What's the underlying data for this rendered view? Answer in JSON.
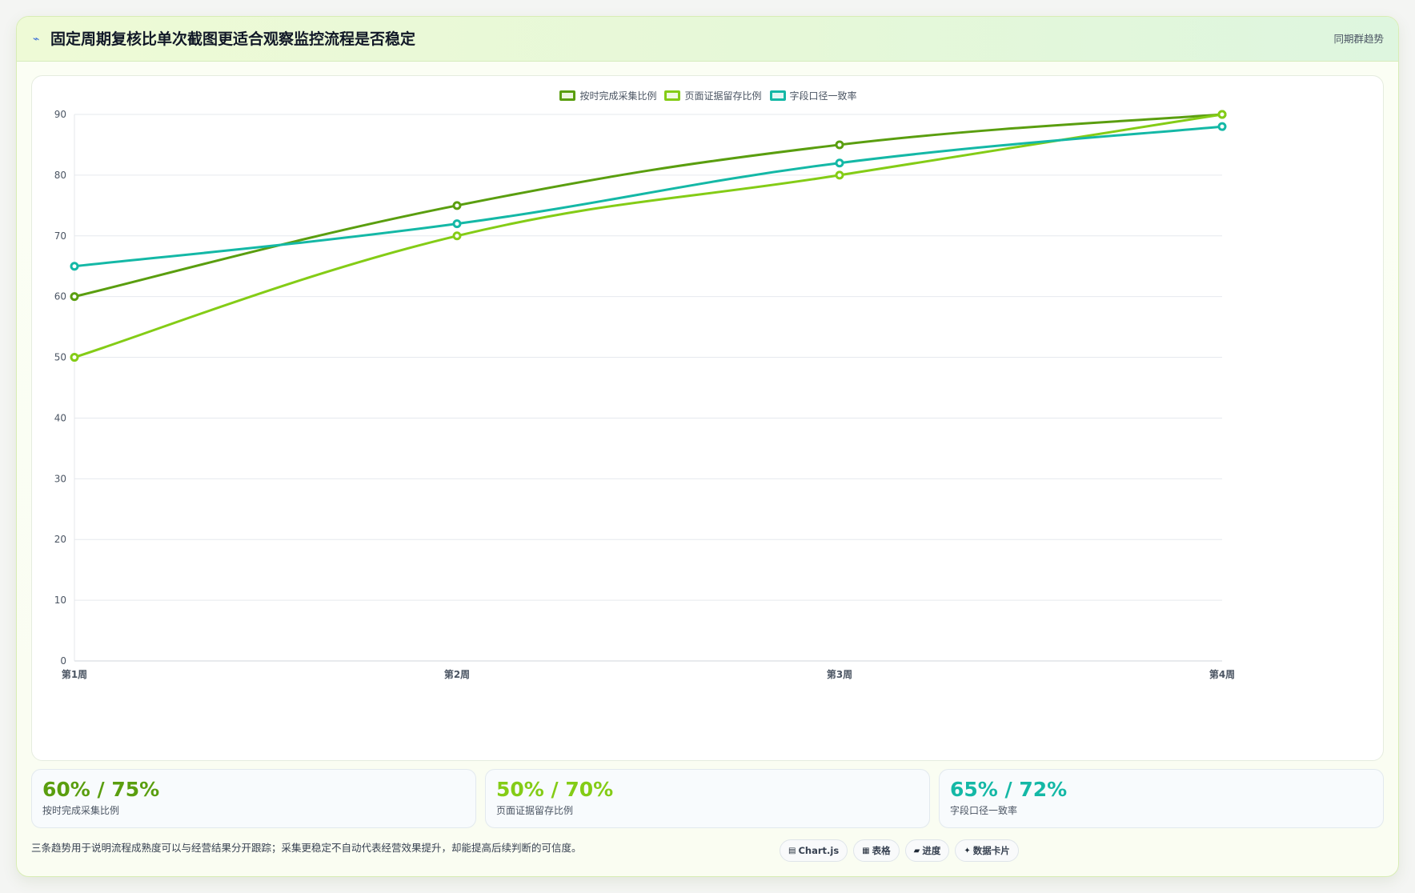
{
  "header": {
    "icon": "bolt-icon",
    "title": "固定周期复核比单次截图更适合观察监控流程是否稳定",
    "right_label": "同期群趋势"
  },
  "colors": {
    "series1": "#5a9e0f",
    "series2": "#84cc16",
    "series3": "#14b8a6",
    "grid": "#e6e9ee",
    "axis_text": "#4b5563"
  },
  "chart_data": {
    "type": "line",
    "title": "",
    "xlabel": "",
    "ylabel": "",
    "categories": [
      "第1周",
      "第2周",
      "第3周",
      "第4周"
    ],
    "yticks": [
      0,
      10,
      20,
      30,
      40,
      50,
      60,
      70,
      80,
      90
    ],
    "ylim": [
      0,
      90
    ],
    "grid": true,
    "legend": "top-center",
    "series": [
      {
        "name": "按时完成采集比例",
        "values": [
          60,
          75,
          85,
          90
        ]
      },
      {
        "name": "页面证据留存比例",
        "values": [
          50,
          70,
          80,
          90
        ]
      },
      {
        "name": "字段口径一致率",
        "values": [
          65,
          72,
          82,
          88
        ]
      }
    ]
  },
  "stats": [
    {
      "value": "60% / 75%",
      "label": "按时完成采集比例"
    },
    {
      "value": "50% / 70%",
      "label": "页面证据留存比例"
    },
    {
      "value": "65% / 72%",
      "label": "字段口径一致率"
    }
  ],
  "footer": {
    "note": "三条趋势用于说明流程成熟度可以与经营结果分开跟踪；采集更稳定不自动代表经营效果提升，却能提高后续判断的可信度。",
    "chips": [
      {
        "icon": "chart-icon",
        "glyph": "▤",
        "label": "Chart.js"
      },
      {
        "icon": "table-icon",
        "glyph": "▦",
        "label": "表格"
      },
      {
        "icon": "progress-icon",
        "glyph": "▰",
        "label": "进度"
      },
      {
        "icon": "sparkle-icon",
        "glyph": "✦",
        "label": "数据卡片"
      }
    ]
  }
}
